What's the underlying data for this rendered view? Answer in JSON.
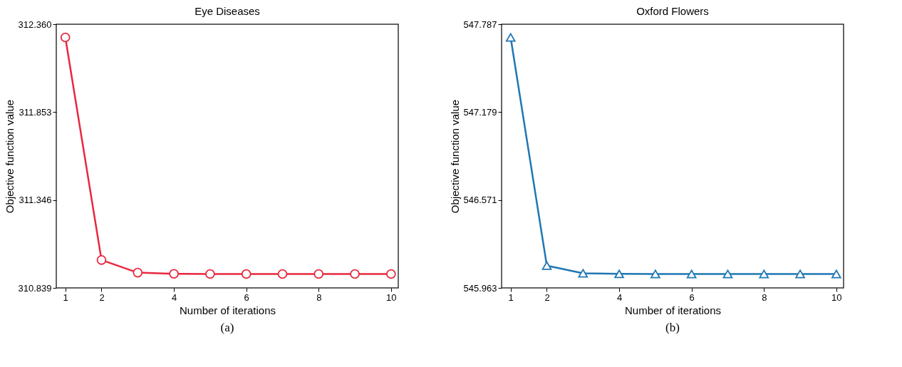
{
  "chart_data": [
    {
      "type": "line",
      "title": "Eye Diseases",
      "xlabel": "Number of iterations",
      "ylabel": "Objective function value",
      "x": [
        1,
        2,
        3,
        4,
        5,
        6,
        7,
        8,
        9,
        10
      ],
      "series": [
        {
          "color": "#e8283f",
          "values": [
            312.284,
            311.0,
            310.927,
            310.92,
            310.919,
            310.919,
            310.919,
            310.919,
            310.919,
            310.919
          ]
        }
      ],
      "xlim": [
        0.75,
        10.2
      ],
      "xticks": [
        1,
        2,
        4,
        6,
        8,
        10
      ],
      "ylim": [
        310.839,
        312.36
      ],
      "yticks": [
        310.839,
        311.346,
        311.853,
        {
          "value": 312.36,
          "label": "312.360"
        }
      ],
      "grid": false,
      "marker": "circle",
      "line_style": "solid",
      "annotations": [
        "(a)"
      ]
    },
    {
      "type": "line",
      "title": "Oxford Flowers",
      "xlabel": "Number of iterations",
      "ylabel": "Objective function value",
      "x": [
        1,
        2,
        3,
        4,
        5,
        6,
        7,
        8,
        9,
        10
      ],
      "series": [
        {
          "color": "#1f77b4",
          "values": [
            547.696,
            546.117,
            546.064,
            546.06,
            546.059,
            546.059,
            546.059,
            546.059,
            546.059,
            546.059
          ]
        }
      ],
      "xlim": [
        0.75,
        10.2
      ],
      "xticks": [
        1,
        2,
        4,
        6,
        8,
        10
      ],
      "ylim": [
        545.963,
        547.787
      ],
      "yticks": [
        545.963,
        546.571,
        547.179,
        547.787
      ],
      "grid": false,
      "marker": "triangle",
      "line_style": "solid",
      "annotations": [
        "(b)"
      ]
    }
  ]
}
